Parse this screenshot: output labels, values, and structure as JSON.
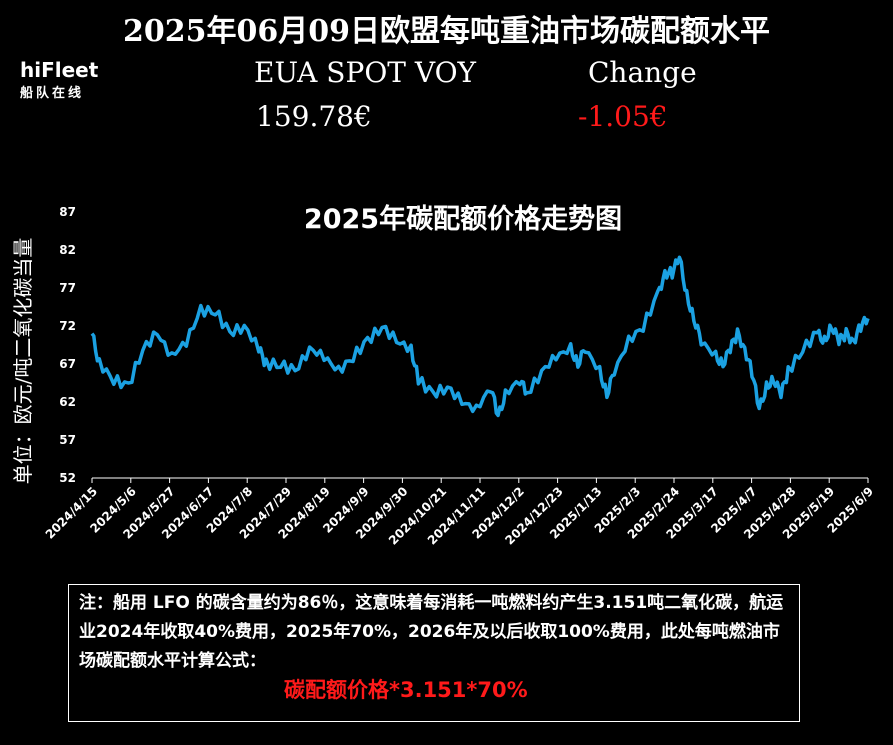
{
  "title": "2025年06月09日欧盟每吨重油市场碳配额水平",
  "logo": {
    "brand": "hiFleet",
    "subtitle": "船队在线"
  },
  "metric": {
    "label": "EUA SPOT VOY",
    "value": "159.78€"
  },
  "change": {
    "label": "Change",
    "value": "-1.05€",
    "color": "#ff1a1a"
  },
  "note": {
    "text": "注：船用 LFO 的碳含量约为86％，这意味着每消耗一吨燃料约产生3.151吨二氧化碳，航运业2024年收取40%费用，2025年70%，2026年及以后收取100%费用，此处每吨燃油市场碳配额水平计算公式：",
    "formula": "碳配额价格*3.151*70%"
  },
  "chart_data": {
    "type": "line",
    "title": "2025年碳配额价格走势图",
    "ylabel": "单位：欧元/吨二氧化碳当量",
    "ylim": [
      52,
      87
    ],
    "yticks": [
      52,
      57,
      62,
      67,
      72,
      77,
      82,
      87
    ],
    "xticks": [
      "2024/4/15",
      "2024/5/6",
      "2024/5/27",
      "2024/6/17",
      "2024/7/8",
      "2024/7/29",
      "2024/8/19",
      "2024/9/9",
      "2024/9/30",
      "2024/10/21",
      "2024/11/11",
      "2024/12/2",
      "2024/12/23",
      "2025/1/13",
      "2025/2/3",
      "2025/2/24",
      "2025/3/17",
      "2025/4/7",
      "2025/4/28",
      "2025/5/19",
      "2025/6/9"
    ],
    "color": "#1ba1e2",
    "kp": [
      [
        0,
        71
      ],
      [
        1,
        67
      ],
      [
        3,
        65
      ],
      [
        5,
        64
      ],
      [
        7,
        69
      ],
      [
        9,
        71
      ],
      [
        11,
        68
      ],
      [
        13,
        70
      ],
      [
        15,
        74
      ],
      [
        17,
        74
      ],
      [
        19,
        71
      ],
      [
        21,
        72
      ],
      [
        23,
        69
      ],
      [
        24,
        67
      ],
      [
        26,
        67
      ],
      [
        28,
        66
      ],
      [
        30,
        69
      ],
      [
        32,
        68
      ],
      [
        34,
        66
      ],
      [
        36,
        68
      ],
      [
        38,
        70
      ],
      [
        40,
        72
      ],
      [
        42,
        70
      ],
      [
        44,
        69
      ],
      [
        45,
        65
      ],
      [
        47,
        63
      ],
      [
        49,
        64
      ],
      [
        51,
        62
      ],
      [
        53,
        61
      ],
      [
        55,
        64
      ],
      [
        56,
        60
      ],
      [
        57,
        63
      ],
      [
        59,
        65
      ],
      [
        60,
        63
      ],
      [
        62,
        66
      ],
      [
        64,
        68
      ],
      [
        66,
        69
      ],
      [
        67,
        67
      ],
      [
        68,
        69
      ],
      [
        70,
        66
      ],
      [
        71,
        63
      ],
      [
        72,
        66
      ],
      [
        74,
        70
      ],
      [
        76,
        72
      ],
      [
        78,
        76
      ],
      [
        79,
        79
      ],
      [
        80,
        79
      ],
      [
        81,
        81
      ],
      [
        82,
        76
      ],
      [
        83,
        73
      ],
      [
        84,
        70
      ],
      [
        86,
        68
      ],
      [
        87,
        67
      ],
      [
        88,
        69
      ],
      [
        89,
        71
      ],
      [
        90,
        69
      ],
      [
        91,
        66
      ],
      [
        92,
        61
      ],
      [
        93,
        64
      ],
      [
        94,
        65
      ],
      [
        95,
        63
      ],
      [
        96,
        66
      ],
      [
        98,
        69
      ],
      [
        100,
        71
      ],
      [
        101,
        70
      ],
      [
        102,
        72
      ],
      [
        103,
        70
      ],
      [
        104,
        71
      ],
      [
        105,
        70
      ],
      [
        106,
        72
      ],
      [
        107,
        73
      ]
    ]
  }
}
